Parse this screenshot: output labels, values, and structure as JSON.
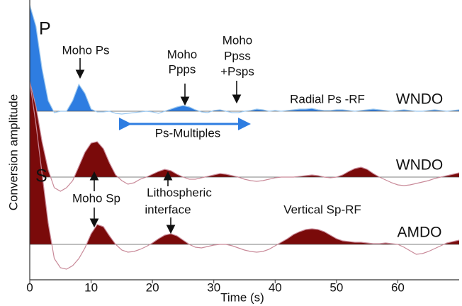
{
  "chart_data": {
    "type": "waveform",
    "y_label": "Conversion amplitude",
    "x_label": "Time (s)",
    "xlim": [
      0,
      70
    ],
    "xticks": [
      0,
      10,
      20,
      30,
      40,
      50,
      60
    ],
    "x": [
      0,
      1,
      2,
      3,
      4,
      5,
      6,
      7,
      8,
      9,
      10,
      11,
      12,
      13,
      14,
      15,
      16,
      17,
      18,
      19,
      20,
      21,
      22,
      23,
      24,
      25,
      26,
      27,
      28,
      29,
      30,
      31,
      32,
      33,
      34,
      35,
      36,
      37,
      38,
      39,
      40,
      41,
      42,
      43,
      44,
      45,
      46,
      47,
      48,
      49,
      50,
      51,
      52,
      53,
      54,
      55,
      56,
      57,
      58,
      59,
      60,
      61,
      62,
      63,
      64,
      65,
      66,
      67,
      68,
      69,
      70
    ],
    "series": [
      {
        "name": "WNDO",
        "color": "#2e7de1",
        "line_color": "#9cc8ef",
        "values": [
          15,
          12,
          6,
          1.5,
          -0.2,
          0,
          0,
          1.5,
          3.8,
          2.5,
          0.3,
          -0.1,
          -0.1,
          0,
          -0.3,
          -0.4,
          -0.3,
          -0.2,
          -0.1,
          0,
          -0.1,
          -0.3,
          0,
          0.3,
          0.6,
          0.8,
          0.6,
          0.2,
          -0.1,
          -0.2,
          0.1,
          0.2,
          0,
          -0.2,
          -0.2,
          0,
          0.1,
          0.3,
          0.2,
          0,
          0.1,
          0,
          0.1,
          0.2,
          0.3,
          0.3,
          0.4,
          0.2,
          0.1,
          0.1,
          0.2,
          0.2,
          0.1,
          0,
          0.1,
          0.2,
          0.3,
          0.2,
          0.1,
          0,
          0.1,
          0.2,
          0.1,
          0,
          0,
          0.1,
          0.2,
          0.1,
          0,
          0.1,
          0.2
        ]
      },
      {
        "name": "WNDO",
        "color": "#7a0a0a",
        "line_color": "#c98a99",
        "values": [
          13.5,
          10,
          5,
          1,
          -1.5,
          -2,
          -1.5,
          -0.5,
          1.5,
          3.5,
          4.8,
          5,
          4,
          2,
          0.3,
          -0.5,
          -1,
          -0.8,
          -0.3,
          0,
          0.4,
          0.8,
          1.1,
          0.9,
          0.4,
          0,
          -0.3,
          -0.3,
          -0.1,
          0.1,
          0.3,
          0.5,
          0.4,
          0.2,
          0,
          -0.3,
          -0.5,
          -0.6,
          -0.5,
          -0.3,
          -0.1,
          0,
          0,
          0,
          0.1,
          0.2,
          0.3,
          0.2,
          0,
          -0.1,
          0,
          0.3,
          0.8,
          1.2,
          1.4,
          1.1,
          0.5,
          0,
          -0.4,
          -0.8,
          -1.1,
          -1.2,
          -1.1,
          -0.9,
          -0.7,
          -0.5,
          -0.2,
          0,
          0.2,
          0.4,
          0.6
        ]
      },
      {
        "name": "AMDO",
        "color": "#7a0a0a",
        "line_color": "#c98a99",
        "values": [
          23,
          17,
          10,
          3,
          -2,
          -3.3,
          -3.5,
          -3,
          -2,
          -0.5,
          1.5,
          2.8,
          2.5,
          1.2,
          0,
          -0.8,
          -1.1,
          -1,
          -0.7,
          -0.3,
          0.2,
          0.8,
          1.3,
          1.5,
          1.2,
          0.6,
          0,
          -0.4,
          -0.5,
          -0.3,
          -0.1,
          0,
          0,
          -0.2,
          -0.5,
          -0.8,
          -1,
          -1.1,
          -1,
          -0.7,
          -0.2,
          0.3,
          0.8,
          1.4,
          1.8,
          2.1,
          2.2,
          2.1,
          1.8,
          1.3,
          0.8,
          0.5,
          0.4,
          0.3,
          0.3,
          0.2,
          0.1,
          0.1,
          0.2,
          0.1,
          0,
          -0.4,
          -0.9,
          -1.4,
          -1.3,
          -1,
          -0.6,
          -0.2,
          0.2,
          0.4,
          0.6
        ]
      }
    ],
    "annotations": {
      "p": "P",
      "s": "S",
      "moho_ps": "Moho Ps",
      "moho_ppps": [
        "Moho",
        "Ppps"
      ],
      "moho_ppss": [
        "Moho",
        "Ppss",
        "+Psps"
      ],
      "radial": "Radial Ps -RF",
      "multiples": "Ps-Multiples",
      "moho_sp": "Moho Sp",
      "litho": [
        "Lithospheric",
        "interface"
      ],
      "vertical": "Vertical Sp-RF"
    }
  }
}
